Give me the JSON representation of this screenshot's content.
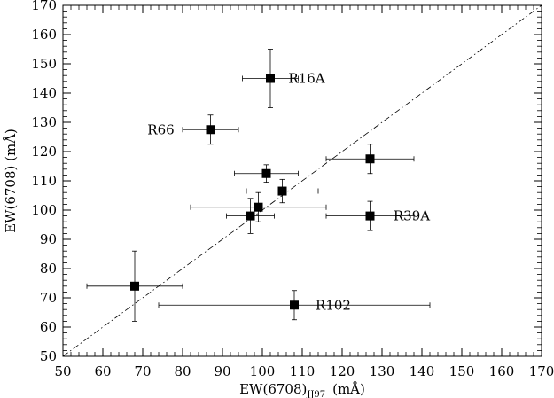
{
  "chart_data": {
    "type": "scatter",
    "title": "",
    "xlabel": {
      "main": "EW(6708)",
      "subscript": "JJ97",
      "unit": "(mÅ)"
    },
    "ylabel": "EW(6708)  (mÅ)",
    "xlim": [
      50,
      170
    ],
    "ylim": [
      50,
      170
    ],
    "xticks": [
      50,
      60,
      70,
      80,
      90,
      100,
      110,
      120,
      130,
      140,
      150,
      160,
      170
    ],
    "yticks": [
      50,
      60,
      70,
      80,
      90,
      100,
      110,
      120,
      130,
      140,
      150,
      160,
      170
    ],
    "grid": false,
    "reference_line": {
      "style": "dash-dot",
      "from": [
        50,
        50
      ],
      "to": [
        170,
        170
      ]
    },
    "points": [
      {
        "x": 68,
        "y": 74,
        "xerr": 12,
        "yerr": 12,
        "label": ""
      },
      {
        "x": 87,
        "y": 127.5,
        "xerr": 7,
        "yerr": 5,
        "label": "R66"
      },
      {
        "x": 97,
        "y": 98,
        "xerr": 6,
        "yerr": 6,
        "label": ""
      },
      {
        "x": 99,
        "y": 101,
        "xerr": 17,
        "yerr": 5,
        "label": ""
      },
      {
        "x": 101,
        "y": 112.5,
        "xerr": 8,
        "yerr": 3,
        "label": ""
      },
      {
        "x": 102,
        "y": 145,
        "xerr": 7,
        "yerr": 10,
        "label": "R16A"
      },
      {
        "x": 105,
        "y": 106.5,
        "xerr": 9,
        "yerr": 4,
        "label": ""
      },
      {
        "x": 108,
        "y": 67.5,
        "xerr": 34,
        "yerr": 5,
        "label": "R102"
      },
      {
        "x": 127,
        "y": 117.5,
        "xerr": 11,
        "yerr": 5,
        "label": ""
      },
      {
        "x": 127,
        "y": 98,
        "xerr": 11,
        "yerr": 5,
        "label": "R39A"
      }
    ]
  }
}
